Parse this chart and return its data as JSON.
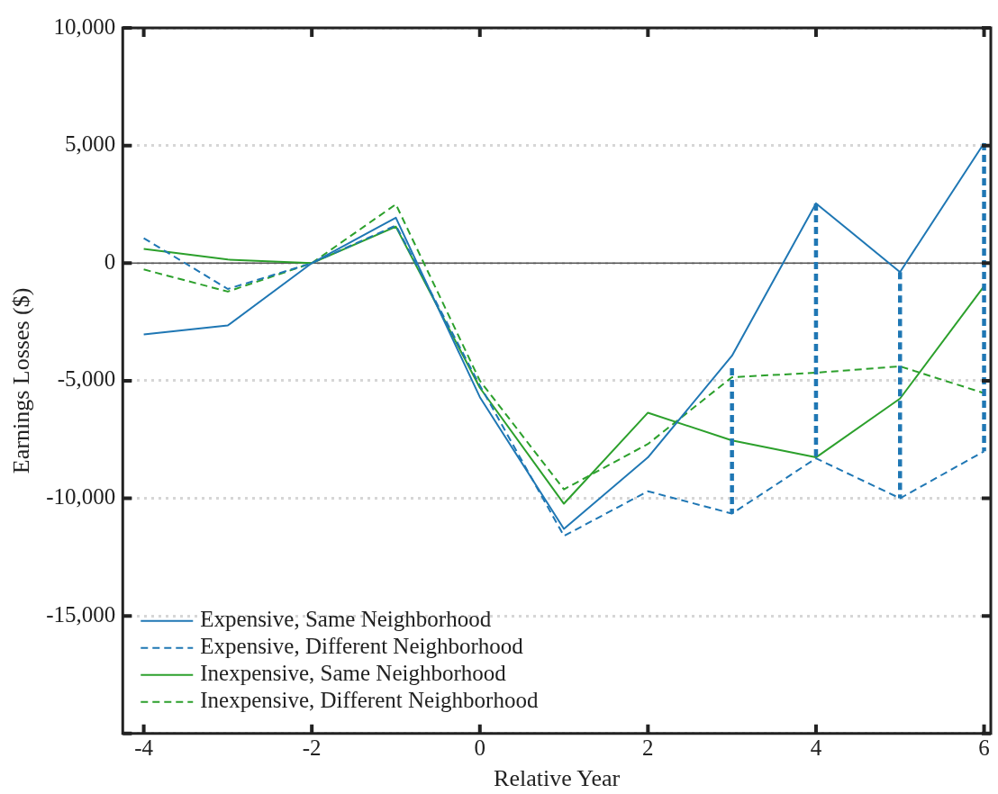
{
  "chart_data": {
    "type": "line",
    "xlabel": "Relative Year",
    "ylabel": "Earnings Losses ($)",
    "x": [
      -4,
      -3,
      -2,
      -1,
      0,
      1,
      2,
      3,
      4,
      5,
      6
    ],
    "xlim": [
      -4.25,
      6.08
    ],
    "xticks": [
      -4,
      -2,
      0,
      2,
      4,
      6
    ],
    "ylim": [
      -20000,
      10000
    ],
    "yticks": [
      {
        "value": -20000,
        "label": null
      },
      {
        "value": -15000,
        "label": "-15,000"
      },
      {
        "value": -10000,
        "label": "-10,000"
      },
      {
        "value": -5000,
        "label": "-5,000"
      },
      0,
      {
        "value": 5000,
        "label": "5,000"
      },
      {
        "value": 10000,
        "label": "10,000"
      }
    ],
    "grid": "y",
    "legend": "bottom left",
    "ref_lines": [
      {
        "axis": "y",
        "value": 0,
        "color": "#555555"
      }
    ],
    "series": [
      {
        "name": "Expensive, Same Neighborhood",
        "color": "#1f77b4",
        "line_style": "solid",
        "values": [
          -3030,
          -2650,
          0,
          1930,
          -5700,
          -11300,
          -8260,
          -3940,
          2540,
          -380,
          5100
        ]
      },
      {
        "name": "Expensive, Different Neighborhood",
        "color": "#1f77b4",
        "line_style": "dashed",
        "values": [
          1060,
          -1100,
          0,
          1600,
          -5200,
          -11600,
          -9700,
          -10650,
          -8300,
          -10000,
          -8000
        ]
      },
      {
        "name": "Inexpensive, Same Neighborhood",
        "color": "#2ca02c",
        "line_style": "solid",
        "values": [
          600,
          150,
          0,
          1550,
          -5300,
          -10230,
          -6360,
          -7540,
          -8260,
          -5760,
          -980
        ]
      },
      {
        "name": "Inexpensive, Different Neighborhood",
        "color": "#2ca02c",
        "line_style": "dashed",
        "values": [
          -270,
          -1210,
          0,
          2500,
          -5000,
          -9620,
          -7690,
          -4850,
          -4660,
          -4390,
          -5530
        ]
      },
      {
        "color": "#1f77b4",
        "line_style": "dashed",
        "x": [
          3,
          3
        ],
        "values": [
          -4470,
          -10650
        ]
      },
      {
        "color": "#1f77b4",
        "line_style": "dashed",
        "x": [
          4,
          4
        ],
        "values": [
          2540,
          -8300
        ]
      },
      {
        "color": "#1f77b4",
        "line_style": "dashed",
        "x": [
          5,
          5
        ],
        "values": [
          -380,
          -10000
        ]
      },
      {
        "color": "#1f77b4",
        "line_style": "dashed",
        "x": [
          6,
          6
        ],
        "values": [
          5100,
          -8000
        ]
      }
    ]
  }
}
